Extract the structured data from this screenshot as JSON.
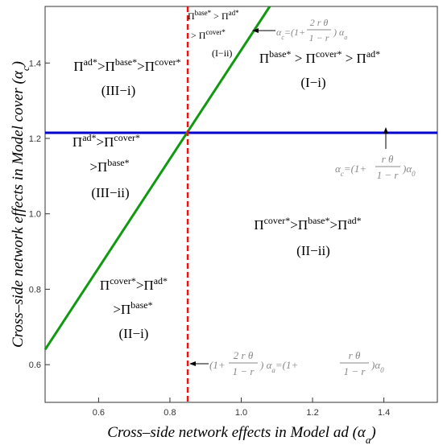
{
  "chart_data": {
    "type": "line",
    "xlabel": "Cross–side network effects in Model ad (α",
    "xlabel_sub": "a",
    "ylabel": "Cross–side network effects in Model cover (α",
    "ylabel_sub": "c",
    "xlim": [
      0.45,
      1.55
    ],
    "ylim": [
      0.5,
      1.55
    ],
    "xticks": [
      "0.6",
      "0.8",
      "1.0",
      "1.2",
      "1.4"
    ],
    "yticks": [
      "0.6",
      "0.8",
      "1.0",
      "1.2",
      "1.4"
    ],
    "grid": false,
    "series": [
      {
        "kind": "line",
        "color": "#0000cc",
        "y": 1.215,
        "x_range": [
          0.45,
          1.55
        ]
      },
      {
        "kind": "line",
        "color": "#119911",
        "x": [
          0.45,
          1.08
        ],
        "y": [
          0.64,
          1.55
        ]
      },
      {
        "kind": "vline",
        "color": "#ee1111",
        "x": 0.85,
        "y_range": [
          0.5,
          1.55
        ],
        "dashed": true
      }
    ],
    "regions": [
      {
        "id": "III-i",
        "lines": [
          "Πad*>Πbase*>Πcover*",
          "(III−i)"
        ]
      },
      {
        "id": "III-ii",
        "lines": [
          "Πad*>Πcover*",
          ">Πbase*",
          "(III−ii)"
        ]
      },
      {
        "id": "I-i",
        "lines": [
          "Πbase* > Πcover* > Πad*",
          "(I−i)"
        ]
      },
      {
        "id": "I-ii",
        "lines": [
          "Πbase* > Πad*",
          "> Πcover*",
          "(I−ii)"
        ]
      },
      {
        "id": "II-ii",
        "lines": [
          "Πcover*>Πbase*>Πad*",
          "(II−ii)"
        ]
      },
      {
        "id": "II-i",
        "lines": [
          "Πcover*>Πad*",
          ">Πbase*",
          "(II−i)"
        ]
      }
    ],
    "annotations": {
      "green_line": "αc=(1+ 2 r θ / (1−r)) αa",
      "blue_line": "αc=(1+ r θ / (1−r))α0",
      "red_line": "(1+ 2 r θ / (1−r)) αa=(1+ r θ / (1−r))α0"
    }
  }
}
